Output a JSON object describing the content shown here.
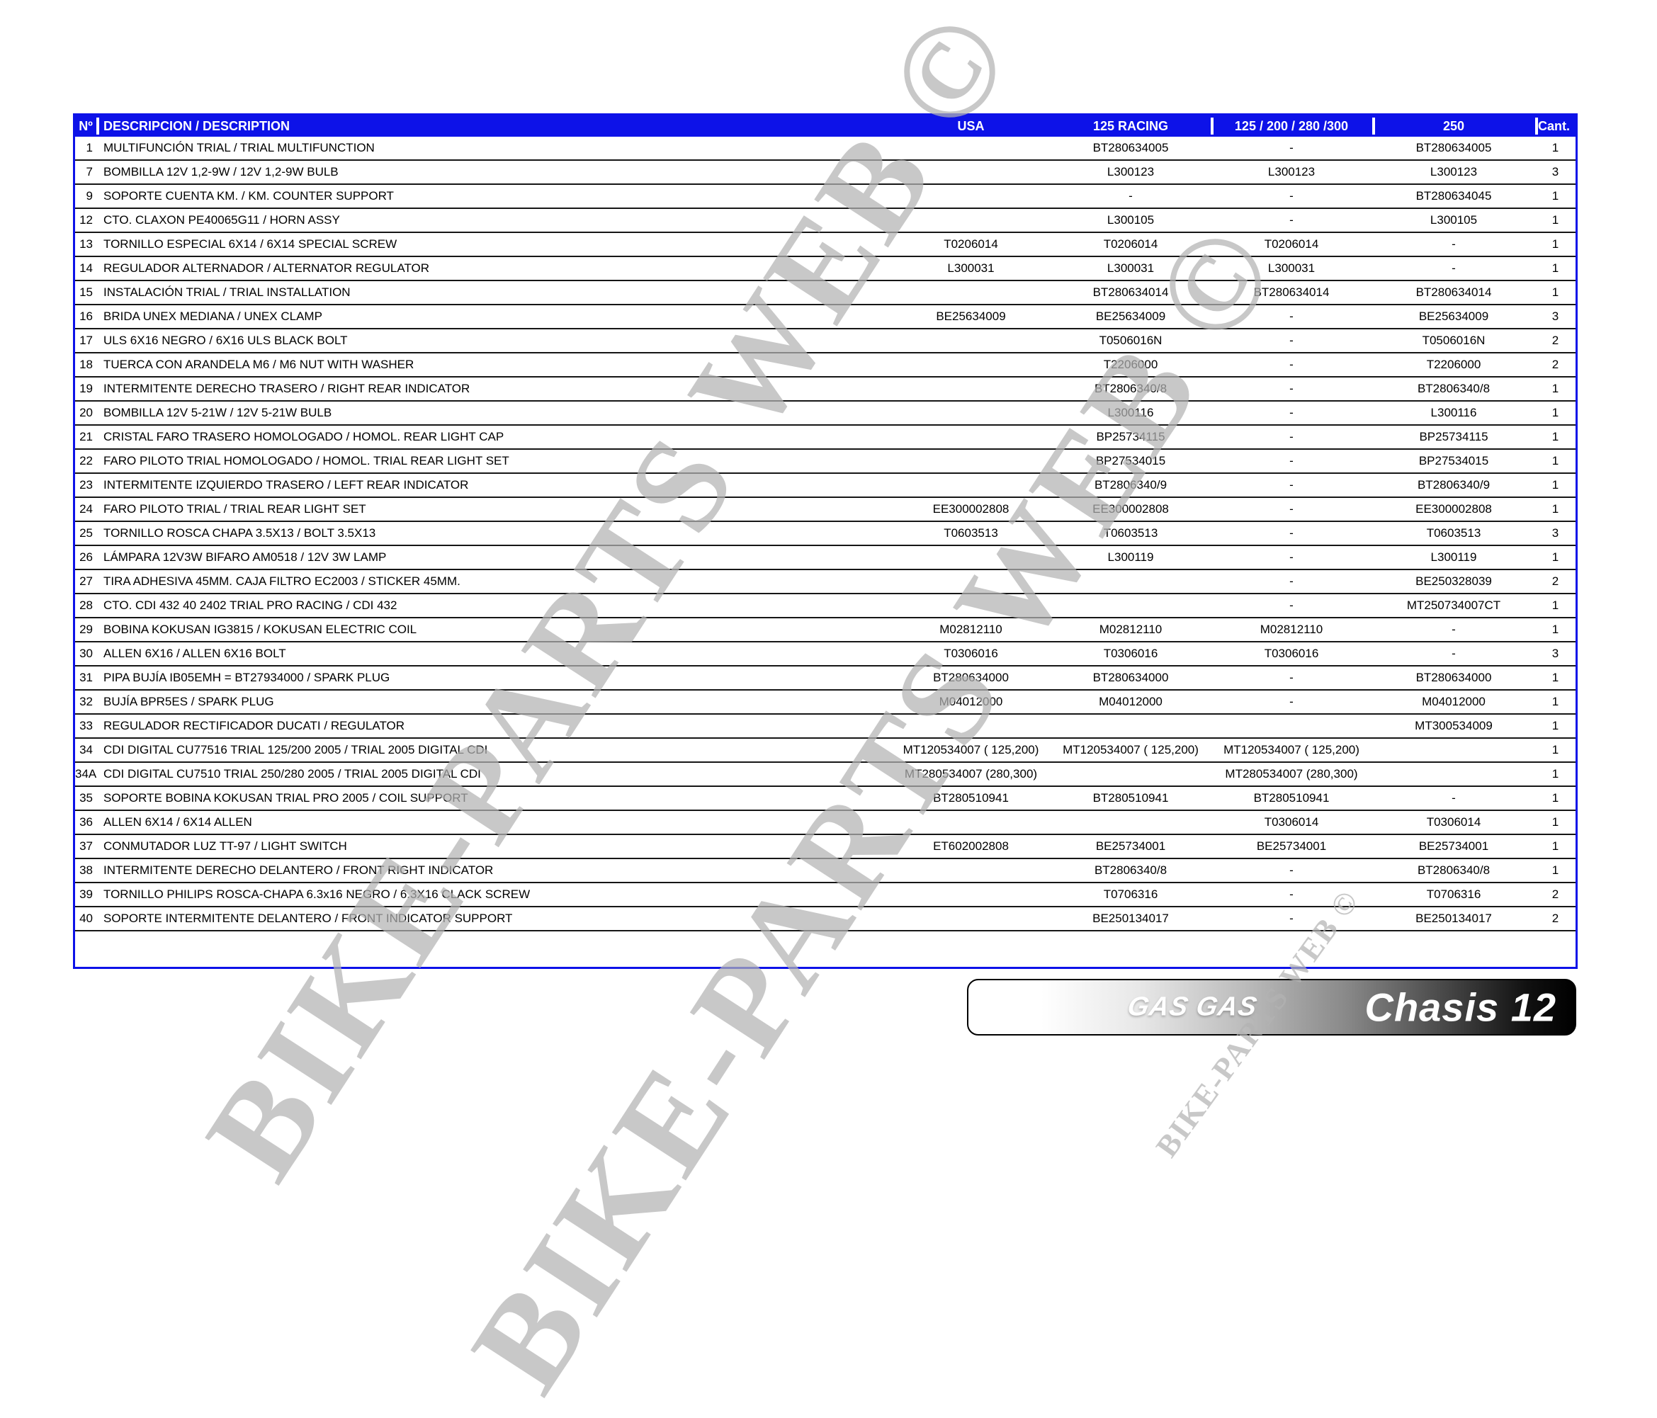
{
  "table": {
    "headers": {
      "num": "Nº",
      "description": "DESCRIPCION / DESCRIPTION",
      "usa": "USA",
      "racing125": "125 RACING",
      "group125": "125 / 200 / 280 /300",
      "g250": "250",
      "qty": "Cant."
    },
    "rows": [
      {
        "n": "1",
        "d": "MULTIFUNCIÓN TRIAL / TRIAL MULTIFUNCTION",
        "usa": "",
        "r": "BT280634005",
        "m": "-",
        "c": "BT280634005",
        "q": "1"
      },
      {
        "n": "7",
        "d": "BOMBILLA 12V 1,2-9W / 12V 1,2-9W BULB",
        "usa": "",
        "r": "L300123",
        "m": "L300123",
        "c": "L300123",
        "q": "3"
      },
      {
        "n": "9",
        "d": "SOPORTE CUENTA KM. / KM. COUNTER SUPPORT",
        "usa": "",
        "r": "-",
        "m": "-",
        "c": "BT280634045",
        "q": "1"
      },
      {
        "n": "12",
        "d": "CTO. CLAXON PE40065G11 / HORN ASSY",
        "usa": "",
        "r": "L300105",
        "m": "-",
        "c": "L300105",
        "q": "1"
      },
      {
        "n": "13",
        "d": "TORNILLO ESPECIAL 6X14 / 6X14 SPECIAL SCREW",
        "usa": "T0206014",
        "r": "T0206014",
        "m": "T0206014",
        "c": "-",
        "q": "1"
      },
      {
        "n": "14",
        "d": "REGULADOR ALTERNADOR / ALTERNATOR REGULATOR",
        "usa": "L300031",
        "r": "L300031",
        "m": "L300031",
        "c": "-",
        "q": "1"
      },
      {
        "n": "15",
        "d": "INSTALACIÓN TRIAL / TRIAL INSTALLATION",
        "usa": "",
        "r": "BT280634014",
        "m": "BT280634014",
        "c": "BT280634014",
        "q": "1"
      },
      {
        "n": "16",
        "d": "BRIDA UNEX MEDIANA / UNEX CLAMP",
        "usa": "BE25634009",
        "r": "BE25634009",
        "m": "-",
        "c": "BE25634009",
        "q": "3"
      },
      {
        "n": "17",
        "d": "ULS 6X16 NEGRO / 6X16 ULS BLACK BOLT",
        "usa": "",
        "r": "T0506016N",
        "m": "-",
        "c": "T0506016N",
        "q": "2"
      },
      {
        "n": "18",
        "d": "TUERCA CON ARANDELA M6 / M6 NUT WITH WASHER",
        "usa": "",
        "r": "T2206000",
        "m": "-",
        "c": "T2206000",
        "q": "2"
      },
      {
        "n": "19",
        "d": "INTERMITENTE DERECHO TRASERO / RIGHT REAR INDICATOR",
        "usa": "",
        "r": "BT2806340/8",
        "m": "-",
        "c": "BT2806340/8",
        "q": "1"
      },
      {
        "n": "20",
        "d": "BOMBILLA 12V 5-21W / 12V 5-21W BULB",
        "usa": "",
        "r": "L300116",
        "m": "-",
        "c": "L300116",
        "q": "1"
      },
      {
        "n": "21",
        "d": "CRISTAL FARO TRASERO HOMOLOGADO / HOMOL. REAR LIGHT CAP",
        "usa": "",
        "r": "BP25734115",
        "m": "-",
        "c": "BP25734115",
        "q": "1"
      },
      {
        "n": "22",
        "d": "FARO PILOTO TRIAL HOMOLOGADO / HOMOL. TRIAL REAR LIGHT SET",
        "usa": "",
        "r": "BP27534015",
        "m": "-",
        "c": "BP27534015",
        "q": "1"
      },
      {
        "n": "23",
        "d": "INTERMITENTE IZQUIERDO TRASERO / LEFT REAR INDICATOR",
        "usa": "",
        "r": "BT2806340/9",
        "m": "-",
        "c": "BT2806340/9",
        "q": "1"
      },
      {
        "n": "24",
        "d": "FARO PILOTO TRIAL / TRIAL REAR LIGHT SET",
        "usa": "EE300002808",
        "r": "EE300002808",
        "m": "-",
        "c": "EE300002808",
        "q": "1"
      },
      {
        "n": "25",
        "d": "TORNILLO ROSCA CHAPA 3.5X13 / BOLT 3.5X13",
        "usa": "T0603513",
        "r": "T0603513",
        "m": "-",
        "c": "T0603513",
        "q": "3"
      },
      {
        "n": "26",
        "d": "LÁMPARA 12V3W BIFARO AM0518 / 12V 3W LAMP",
        "usa": "",
        "r": "L300119",
        "m": "-",
        "c": "L300119",
        "q": "1"
      },
      {
        "n": "27",
        "d": "TIRA ADHESIVA 45MM. CAJA FILTRO EC2003 / STICKER 45MM.",
        "usa": "",
        "r": "",
        "m": "-",
        "c": "BE250328039",
        "q": "2"
      },
      {
        "n": "28",
        "d": "CTO. CDI 432 40 2402 TRIAL PRO RACING / CDI 432",
        "usa": "",
        "r": "",
        "m": "-",
        "c": "MT250734007CT",
        "q": "1"
      },
      {
        "n": "29",
        "d": "BOBINA KOKUSAN IG3815 / KOKUSAN ELECTRIC COIL",
        "usa": "M02812110",
        "r": "M02812110",
        "m": "M02812110",
        "c": "-",
        "q": "1"
      },
      {
        "n": "30",
        "d": "ALLEN 6X16 / ALLEN 6X16 BOLT",
        "usa": "T0306016",
        "r": "T0306016",
        "m": "T0306016",
        "c": "-",
        "q": "3"
      },
      {
        "n": "31",
        "d": "PIPA BUJÍA IB05EMH = BT27934000 / SPARK PLUG",
        "usa": "BT280634000",
        "r": "BT280634000",
        "m": "-",
        "c": "BT280634000",
        "q": "1"
      },
      {
        "n": "32",
        "d": "BUJÍA BPR5ES / SPARK PLUG",
        "usa": "M04012000",
        "r": "M04012000",
        "m": "-",
        "c": "M04012000",
        "q": "1"
      },
      {
        "n": "33",
        "d": "REGULADOR RECTIFICADOR DUCATI / REGULATOR",
        "usa": "",
        "r": "",
        "m": "",
        "c": "MT300534009",
        "q": "1"
      },
      {
        "n": "34",
        "d": "CDI DIGITAL CU77516 TRIAL 125/200 2005 / TRIAL 2005 DIGITAL CDI",
        "usa": "MT120534007 ( 125,200)",
        "r": "MT120534007 ( 125,200)",
        "m": "MT120534007 ( 125,200)",
        "c": "",
        "q": "1"
      },
      {
        "n": "34A",
        "d": "CDI DIGITAL CU7510 TRIAL 250/280 2005 / TRIAL 2005 DIGITAL CDI",
        "usa": "MT280534007 (280,300)",
        "r": "",
        "m": "MT280534007 (280,300)",
        "c": "",
        "q": "1"
      },
      {
        "n": "35",
        "d": "SOPORTE BOBINA KOKUSAN TRIAL PRO 2005 / COIL SUPPORT",
        "usa": "BT280510941",
        "r": "BT280510941",
        "m": "BT280510941",
        "c": "-",
        "q": "1"
      },
      {
        "n": "36",
        "d": "ALLEN 6X14 / 6X14 ALLEN",
        "usa": "",
        "r": "",
        "m": "T0306014",
        "c": "T0306014",
        "q": "1"
      },
      {
        "n": "37",
        "d": "CONMUTADOR LUZ TT-97 / LIGHT SWITCH",
        "usa": "ET602002808",
        "r": "BE25734001",
        "m": "BE25734001",
        "c": "BE25734001",
        "q": "1"
      },
      {
        "n": "38",
        "d": "INTERMITENTE DERECHO DELANTERO / FRONT RIGHT INDICATOR",
        "usa": "",
        "r": "BT2806340/8",
        "m": "-",
        "c": "BT2806340/8",
        "q": "1"
      },
      {
        "n": "39",
        "d": "TORNILLO PHILIPS ROSCA-CHAPA 6.3x16 NEGRO / 6.3X16 CLACK SCREW",
        "usa": "",
        "r": "T0706316",
        "m": "-",
        "c": "T0706316",
        "q": "2"
      },
      {
        "n": "40",
        "d": "SOPORTE INTERMITENTE DELANTERO / FRONT INDICATOR SUPPORT",
        "usa": "",
        "r": "BE250134017",
        "m": "-",
        "c": "BE250134017",
        "q": "2"
      }
    ]
  },
  "watermark": {
    "text": "BIKE-PARTS WEB ©"
  },
  "footer": {
    "brand": "GAS GAS",
    "title": "Chasis 12"
  },
  "colors": {
    "header_blue": "#0d12e8",
    "row_line": "#161616",
    "watermark_gray": "#b3b3b3"
  }
}
